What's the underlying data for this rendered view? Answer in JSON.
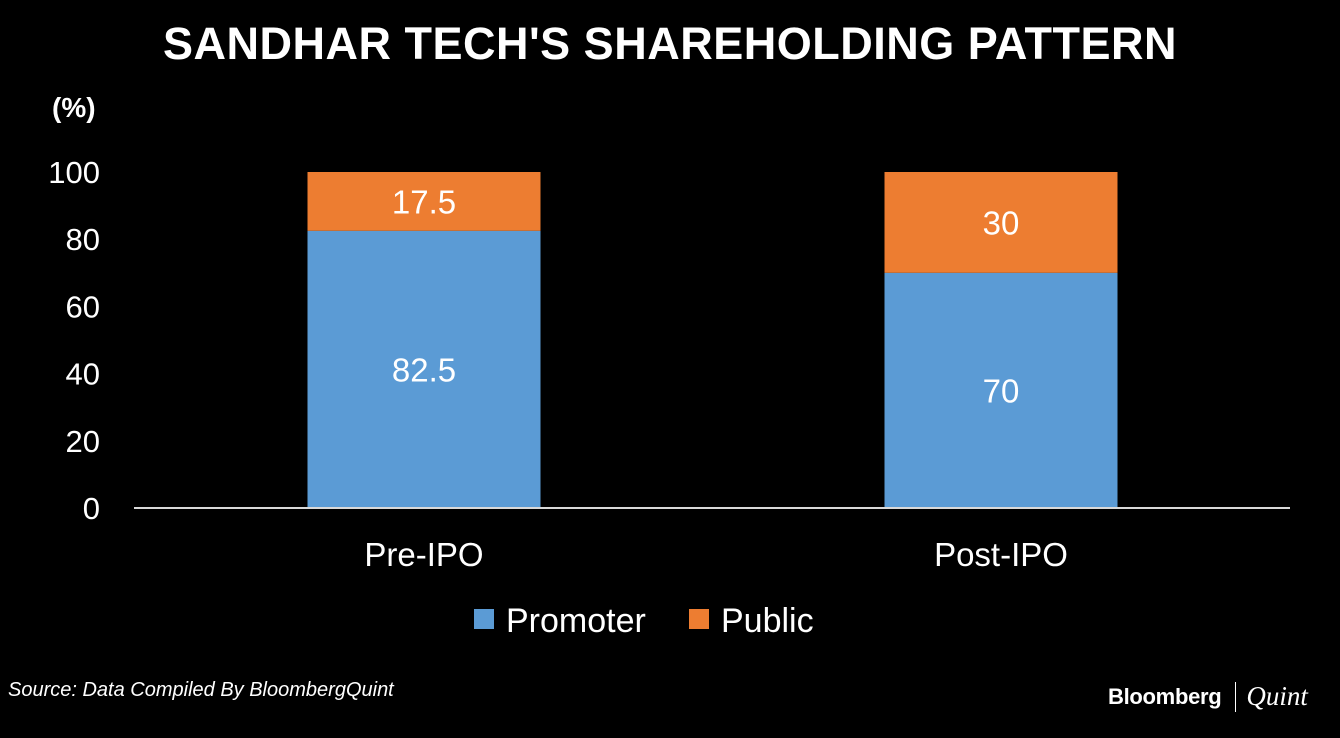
{
  "chart_data": {
    "type": "bar",
    "stacked": true,
    "title": "SANDHAR TECH'S SHAREHOLDING PATTERN",
    "ylabel": "(%)",
    "xlabel": "",
    "categories": [
      "Pre-IPO",
      "Post-IPO"
    ],
    "series": [
      {
        "name": "Promoter",
        "values": [
          82.5,
          70
        ],
        "labels": [
          "82.5",
          "70"
        ],
        "color": "#5B9BD5"
      },
      {
        "name": "Public",
        "values": [
          17.5,
          30
        ],
        "labels": [
          "17.5",
          "30"
        ],
        "color": "#ED7D31"
      }
    ],
    "ylim": [
      0,
      100
    ],
    "yticks": [
      0,
      20,
      40,
      60,
      80,
      100
    ],
    "ytick_labels": [
      "0",
      "20",
      "40",
      "60",
      "80",
      "100"
    ],
    "grid": false,
    "legend": "bottom-center"
  },
  "footer": {
    "source": "Source: Data Compiled By BloombergQuint",
    "brand_primary": "Bloomberg",
    "brand_secondary": "Quint"
  }
}
